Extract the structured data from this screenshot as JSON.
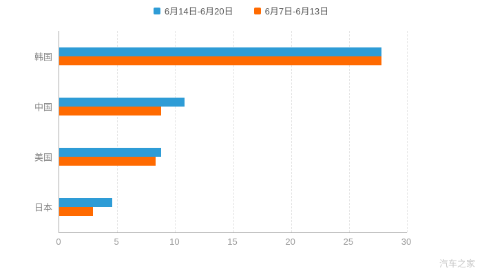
{
  "chart_data": {
    "type": "bar",
    "orientation": "horizontal",
    "categories": [
      "韩国",
      "中国",
      "美国",
      "日本"
    ],
    "series": [
      {
        "name": "6月14日-6月20日",
        "color": "#2E9CD6",
        "values": [
          27.8,
          10.8,
          8.8,
          4.6
        ]
      },
      {
        "name": "6月7日-6月13日",
        "color": "#FF6A00",
        "values": [
          27.8,
          8.8,
          8.3,
          2.9
        ]
      }
    ],
    "xlim": [
      0,
      30
    ],
    "x_ticks": [
      0,
      5,
      10,
      15,
      20,
      25,
      30
    ],
    "grid": "dashed-vertical",
    "legend_position": "top",
    "title": "",
    "xlabel": "",
    "ylabel": ""
  },
  "watermark": "汽车之家",
  "colors": {
    "axis": "#aaaaaa",
    "tick_label": "#999999",
    "category_label": "#808080",
    "gridline": "#e3e3e3",
    "legend_text": "#555555",
    "watermark": "#c8c8c8",
    "background": "#ffffff"
  }
}
